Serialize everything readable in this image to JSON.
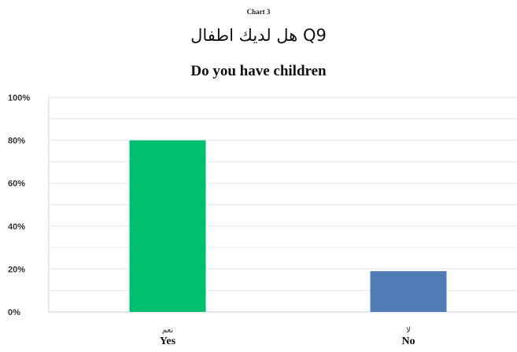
{
  "header": {
    "chart_label": "Chart 3",
    "title_ar": "هل لديك اطفال Q9",
    "title_en": "Do you have children"
  },
  "chart_data": {
    "type": "bar",
    "categories": [
      "Yes",
      "No"
    ],
    "categories_ar": [
      "نعم",
      "لا"
    ],
    "values": [
      80,
      19
    ],
    "colors": [
      "#00BF6F",
      "#507CB6"
    ],
    "ylim": [
      0,
      100
    ],
    "yticks": [
      "0%",
      "20%",
      "40%",
      "60%",
      "80%",
      "100%"
    ],
    "grid": true
  }
}
